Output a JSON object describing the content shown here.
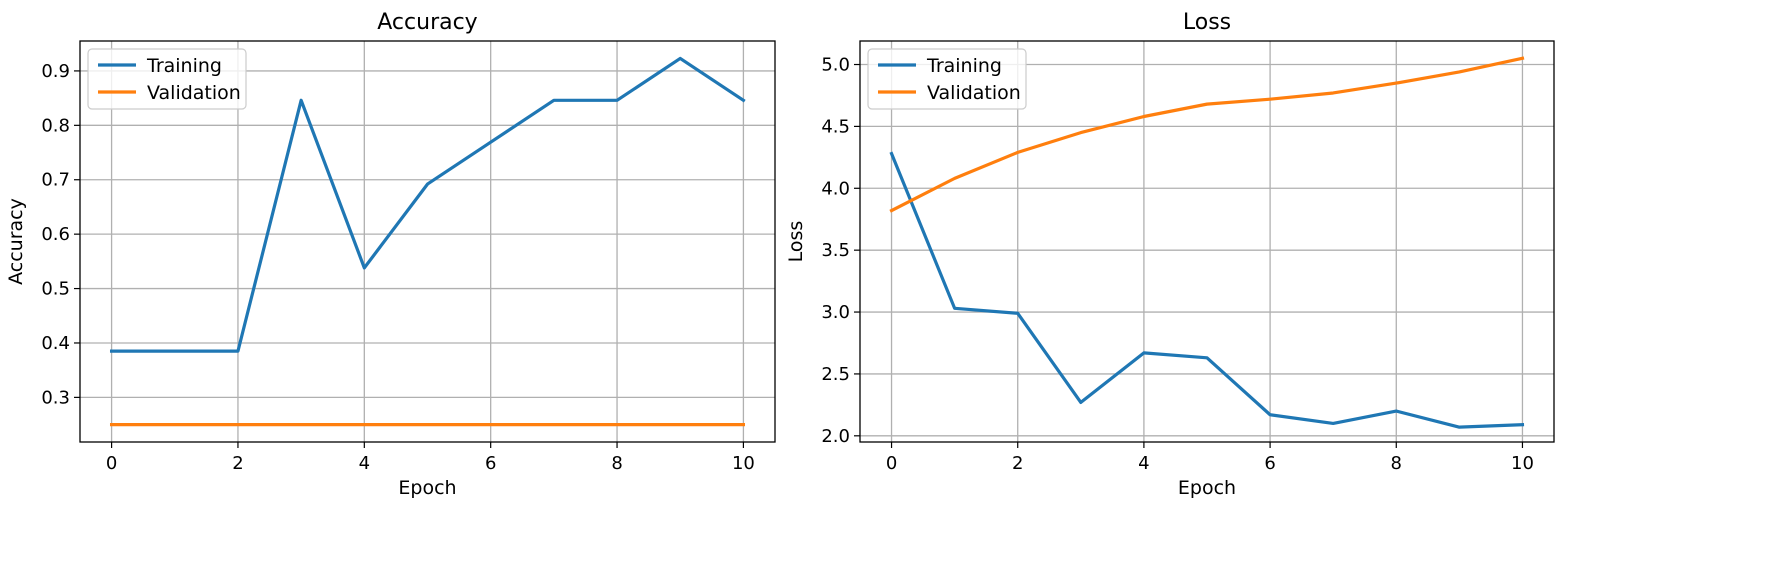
{
  "chart_data": [
    {
      "type": "line",
      "title": "Accuracy",
      "xlabel": "Epoch",
      "ylabel": "Accuracy",
      "x": [
        0,
        1,
        2,
        3,
        4,
        5,
        6,
        7,
        8,
        9,
        10
      ],
      "xlim": [
        -0.5,
        10.5
      ],
      "ylim": [
        0.218,
        0.955
      ],
      "xticks": [
        0,
        2,
        4,
        6,
        8,
        10
      ],
      "yticks": [
        0.3,
        0.4,
        0.5,
        0.6,
        0.7,
        0.8,
        0.9
      ],
      "grid": true,
      "legend": "upper left",
      "series": [
        {
          "name": "Training",
          "color": "#1f77b4",
          "values": [
            0.385,
            0.385,
            0.385,
            0.846,
            0.538,
            0.692,
            0.769,
            0.846,
            0.846,
            0.923,
            0.846
          ]
        },
        {
          "name": "Validation",
          "color": "#ff7f0e",
          "values": [
            0.25,
            0.25,
            0.25,
            0.25,
            0.25,
            0.25,
            0.25,
            0.25,
            0.25,
            0.25,
            0.25
          ]
        }
      ]
    },
    {
      "type": "line",
      "title": "Loss",
      "xlabel": "Epoch",
      "ylabel": "Loss",
      "x": [
        0,
        1,
        2,
        3,
        4,
        5,
        6,
        7,
        8,
        9,
        10
      ],
      "xlim": [
        -0.5,
        10.5
      ],
      "ylim": [
        1.95,
        5.19
      ],
      "xticks": [
        0,
        2,
        4,
        6,
        8,
        10
      ],
      "yticks": [
        2.0,
        2.5,
        3.0,
        3.5,
        4.0,
        4.5,
        5.0
      ],
      "grid": true,
      "legend": "upper left",
      "series": [
        {
          "name": "Training",
          "color": "#1f77b4",
          "values": [
            4.28,
            3.03,
            2.99,
            2.27,
            2.67,
            2.63,
            2.17,
            2.1,
            2.2,
            2.07,
            2.09
          ]
        },
        {
          "name": "Validation",
          "color": "#ff7f0e",
          "values": [
            3.82,
            4.08,
            4.29,
            4.45,
            4.58,
            4.68,
            4.72,
            4.77,
            4.85,
            4.94,
            5.05
          ]
        }
      ]
    }
  ]
}
